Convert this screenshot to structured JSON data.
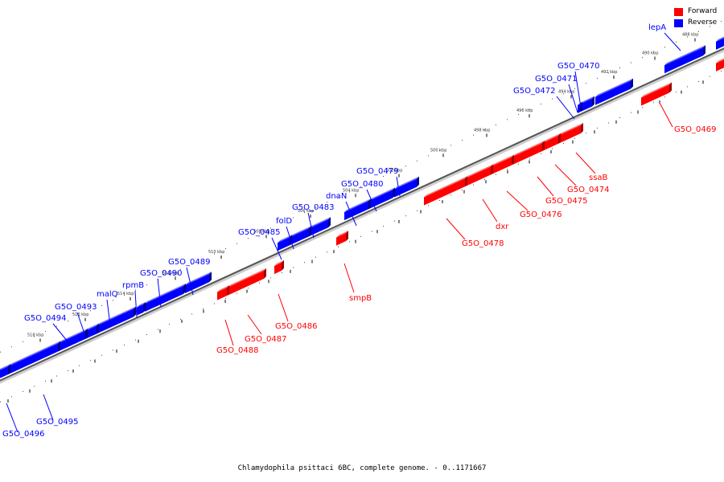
{
  "caption": "Chlamydophila psittaci 6BC, complete genome. - 0..1171667",
  "legend": {
    "forward_label": "Forward",
    "reverse_label": "Reverse",
    "forward_color": "#ff0000",
    "reverse_color": "#0000ff"
  },
  "scale_ticks": [
    "488 kbp",
    "490 kbp",
    "492 kbp",
    "494 kbp",
    "496 kbp",
    "498 kbp",
    "500 kbp",
    "502 kbp",
    "504 kbp",
    "506 kbp",
    "508 kbp",
    "510 kbp",
    "512 kbp",
    "514 kbp",
    "516 kbp",
    "518 kbp"
  ],
  "reverse_genes": [
    "lepA",
    "G5O_0470",
    "G5O_0471",
    "G5O_0472",
    "G5O_0479",
    "G5O_0480",
    "dnaN",
    "G5O_0483",
    "folD",
    "G5O_0485",
    "G5O_0489",
    "G5O_0490",
    "rpmB",
    "malQ",
    "G5O_0493",
    "G5O_0494",
    "G5O_0495",
    "G5O_0496"
  ],
  "forward_genes": [
    "G5O_0469",
    "ssaB",
    "G5O_0474",
    "G5O_0475",
    "G5O_0476",
    "dxr",
    "G5O_0478",
    "smpB",
    "G5O_0486",
    "G5O_0487",
    "G5O_0488"
  ]
}
